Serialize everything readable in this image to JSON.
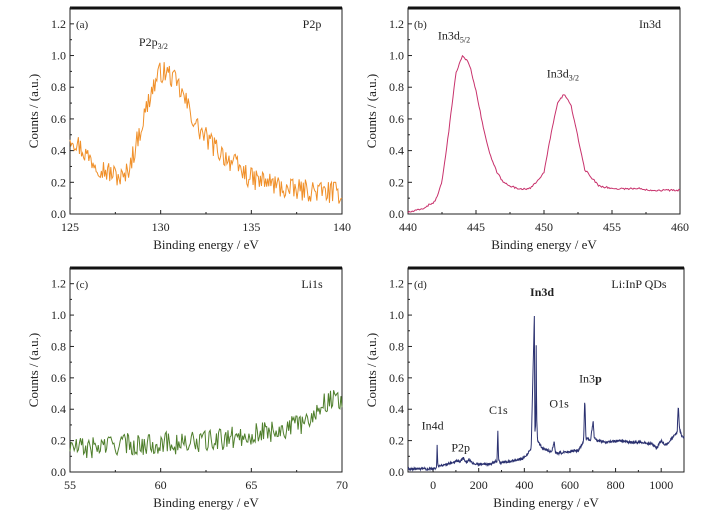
{
  "chart_data": [
    {
      "type": "line",
      "panel": "(a)",
      "corner_label": "P2p",
      "xlabel": "Binding energy / eV",
      "ylabel": "Counts / (a.u.)",
      "xlim": [
        125,
        140
      ],
      "ylim": [
        0,
        1.3
      ],
      "xticks": [
        "125",
        "130",
        "135",
        "140"
      ],
      "yticks": [
        "0.0",
        "0.2",
        "0.4",
        "0.6",
        "0.8",
        "1.0",
        "1.2"
      ],
      "color": "#f0902a",
      "noise": 0.07,
      "grid": false,
      "series": [
        {
          "x": [
            125,
            126,
            127,
            128,
            128.5,
            129,
            129.5,
            130,
            130.5,
            131,
            131.5,
            132,
            132.5,
            133,
            134,
            135,
            136,
            137,
            138,
            139,
            140
          ],
          "y": [
            0.5,
            0.36,
            0.27,
            0.22,
            0.38,
            0.58,
            0.78,
            0.9,
            0.88,
            0.8,
            0.68,
            0.55,
            0.48,
            0.42,
            0.32,
            0.22,
            0.2,
            0.15,
            0.15,
            0.14,
            0.13
          ]
        }
      ],
      "annotations": [
        {
          "text": "P2p",
          "sub": "3/2",
          "x": 128.8,
          "y": 1.06
        }
      ]
    },
    {
      "type": "line",
      "panel": "(b)",
      "corner_label": "In3d",
      "xlabel": "Binding energy / eV",
      "ylabel": "Counts / (a.u.)",
      "xlim": [
        440,
        460
      ],
      "ylim": [
        0,
        1.3
      ],
      "xticks": [
        "440",
        "445",
        "450",
        "455",
        "460"
      ],
      "yticks": [
        "0.0",
        "0.2",
        "0.4",
        "0.6",
        "0.8",
        "1.0",
        "1.2"
      ],
      "color": "#c8326c",
      "noise": 0.006,
      "grid": false,
      "series": [
        {
          "x": [
            440,
            441,
            442,
            442.5,
            443,
            443.5,
            444,
            444.5,
            445,
            445.5,
            446,
            446.5,
            447,
            448,
            449,
            450,
            450.5,
            451,
            451.5,
            452,
            452.5,
            453,
            454,
            455,
            456,
            457,
            458,
            459,
            460
          ],
          "y": [
            0.01,
            0.03,
            0.08,
            0.2,
            0.52,
            0.88,
            1.0,
            0.95,
            0.78,
            0.56,
            0.38,
            0.27,
            0.2,
            0.16,
            0.16,
            0.26,
            0.5,
            0.7,
            0.76,
            0.68,
            0.48,
            0.28,
            0.18,
            0.16,
            0.16,
            0.16,
            0.15,
            0.15,
            0.15
          ]
        }
      ],
      "annotations": [
        {
          "text": "In3d",
          "sub": "5/2",
          "x": 442.2,
          "y": 1.1
        },
        {
          "text": "In3d",
          "sub": "3/2",
          "x": 450.2,
          "y": 0.86
        }
      ]
    },
    {
      "type": "line",
      "panel": "(c)",
      "corner_label": "Li1s",
      "xlabel": "Binding energy / eV",
      "ylabel": "Counts / (a.u.)",
      "xlim": [
        55,
        70
      ],
      "ylim": [
        0,
        1.3
      ],
      "xticks": [
        "55",
        "60",
        "65",
        "70"
      ],
      "yticks": [
        "0.0",
        "0.2",
        "0.4",
        "0.6",
        "0.8",
        "1.0",
        "1.2"
      ],
      "color": "#4f7f2c",
      "noise": 0.07,
      "grid": false,
      "series": [
        {
          "x": [
            55,
            56,
            57,
            58,
            59,
            60,
            61,
            62,
            63,
            64,
            65,
            66,
            67,
            68,
            68.5,
            69,
            69.5,
            70
          ],
          "y": [
            0.16,
            0.15,
            0.17,
            0.18,
            0.17,
            0.19,
            0.18,
            0.19,
            0.2,
            0.22,
            0.24,
            0.26,
            0.28,
            0.32,
            0.38,
            0.44,
            0.47,
            0.46
          ]
        }
      ],
      "annotations": []
    },
    {
      "type": "line",
      "panel": "(d)",
      "corner_label": "Li:InP QDs",
      "xlabel": "Binding energy / eV",
      "ylabel": "Counts / (a.u.)",
      "xlim": [
        -110,
        1100
      ],
      "ylim": [
        0,
        1.3
      ],
      "xticks": [
        "0",
        "200",
        "400",
        "600",
        "800",
        "1000"
      ],
      "yticks": [
        "0.0",
        "0.2",
        "0.4",
        "0.6",
        "0.8",
        "1.0",
        "1.2"
      ],
      "color": "#2b3170",
      "noise": 0.008,
      "grid": false,
      "series": [
        {
          "x": [
            -110,
            0,
            15,
            18,
            20,
            22,
            30,
            60,
            80,
            100,
            120,
            133,
            140,
            150,
            158,
            170,
            200,
            250,
            280,
            284,
            287,
            292,
            310,
            350,
            400,
            430,
            444,
            446,
            450,
            452,
            454,
            458,
            480,
            520,
            531,
            536,
            560,
            600,
            640,
            660,
            665,
            670,
            690,
            702,
            706,
            720,
            760,
            820,
            860,
            900,
            960,
            980,
            1000,
            1020,
            1050,
            1070,
            1075,
            1080,
            1090,
            1100
          ],
          "y": [
            0.02,
            0.02,
            0.03,
            0.18,
            0.06,
            0.04,
            0.04,
            0.05,
            0.06,
            0.07,
            0.07,
            0.09,
            0.07,
            0.06,
            0.08,
            0.06,
            0.05,
            0.05,
            0.07,
            0.27,
            0.08,
            0.06,
            0.06,
            0.07,
            0.09,
            0.15,
            1.0,
            0.25,
            0.3,
            0.81,
            0.35,
            0.2,
            0.15,
            0.13,
            0.19,
            0.12,
            0.12,
            0.13,
            0.14,
            0.2,
            0.47,
            0.22,
            0.2,
            0.33,
            0.22,
            0.2,
            0.19,
            0.2,
            0.19,
            0.19,
            0.18,
            0.15,
            0.2,
            0.17,
            0.22,
            0.25,
            0.43,
            0.28,
            0.23,
            0.22
          ]
        }
      ],
      "annotations": [
        {
          "text": "In3d",
          "sub": "",
          "bold": true,
          "x": 425,
          "y": 1.12
        },
        {
          "text": "In4d",
          "sub": "",
          "bold": false,
          "x": -50,
          "y": 0.27
        },
        {
          "text": "P2p",
          "sub": "",
          "bold": false,
          "x": 80,
          "y": 0.13
        },
        {
          "text": "C1s",
          "sub": "",
          "bold": false,
          "x": 245,
          "y": 0.37
        },
        {
          "text": "O1s",
          "sub": "",
          "bold": false,
          "x": 510,
          "y": 0.41
        },
        {
          "text": "In3p",
          "sub": "",
          "bold": false,
          "boldPart": "p",
          "x": 640,
          "y": 0.57
        }
      ]
    }
  ]
}
